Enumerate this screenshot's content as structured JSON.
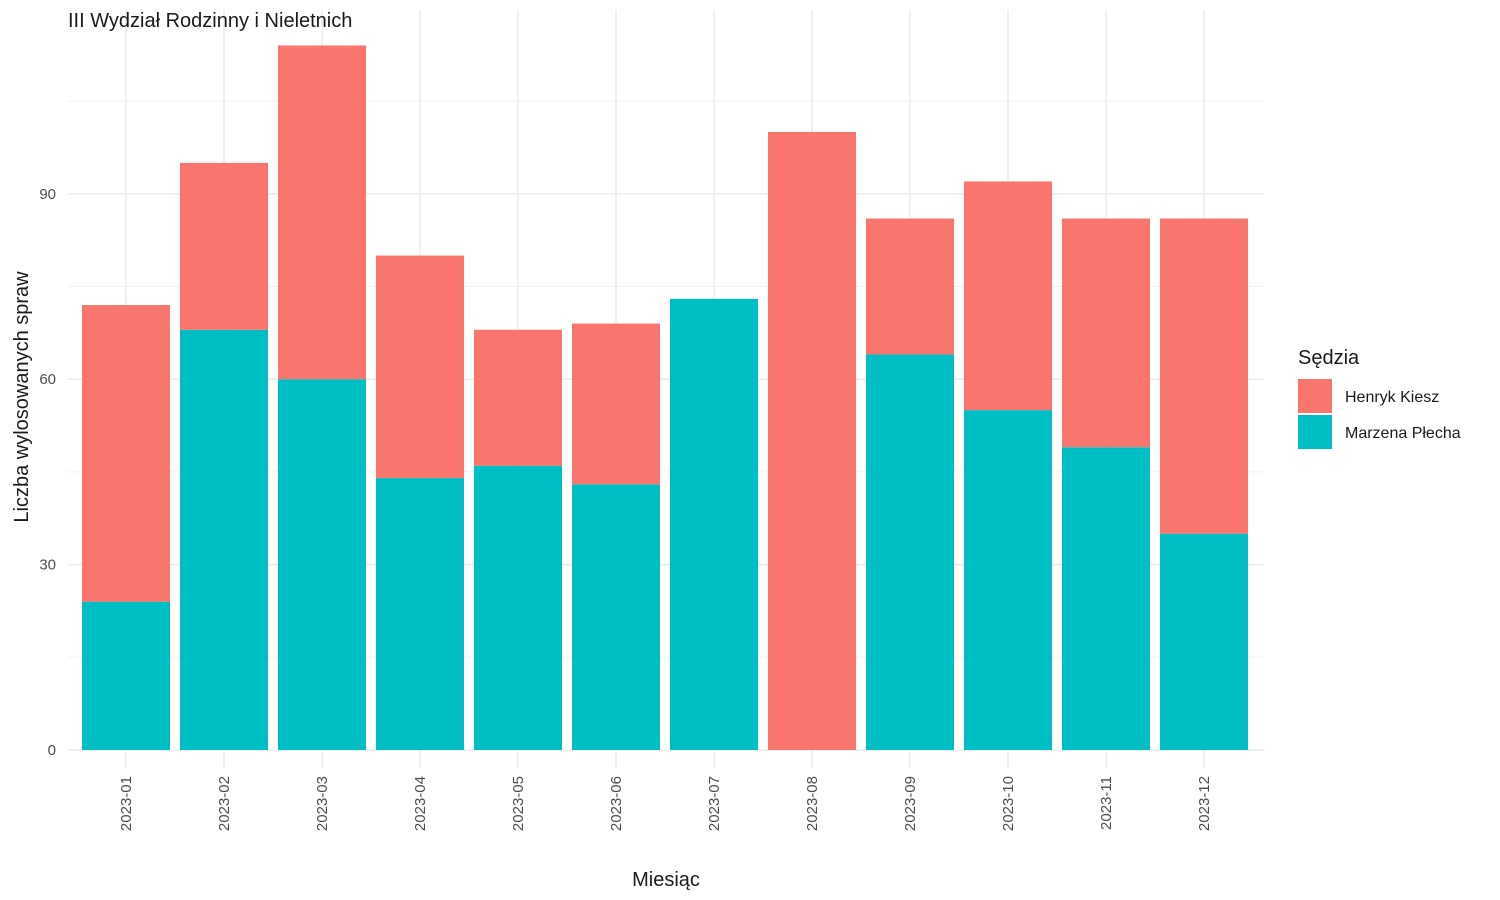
{
  "chart_data": {
    "type": "bar",
    "stacked": true,
    "title": "III Wydział Rodzinny i Nieletnich",
    "xlabel": "Miesiąc",
    "ylabel": "Liczba wylosowanych spraw",
    "categories": [
      "2023-01",
      "2023-02",
      "2023-03",
      "2023-04",
      "2023-05",
      "2023-06",
      "2023-07",
      "2023-08",
      "2023-09",
      "2023-10",
      "2023-11",
      "2023-12"
    ],
    "series": [
      {
        "name": "Marzena Płecha",
        "color": "#00BFC4",
        "values": [
          24,
          68,
          60,
          44,
          46,
          43,
          73,
          0,
          64,
          55,
          49,
          35
        ]
      },
      {
        "name": "Henryk Kiesz",
        "color": "#F8766D",
        "values": [
          48,
          27,
          54,
          36,
          22,
          26,
          0,
          100,
          22,
          37,
          37,
          51
        ]
      }
    ],
    "ylim": [
      0,
      114
    ],
    "yticks": [
      0,
      30,
      60,
      90
    ],
    "grid": true,
    "legend": {
      "title": "Sędzia",
      "position": "right",
      "order": [
        "Henryk Kiesz",
        "Marzena Płecha"
      ]
    }
  }
}
